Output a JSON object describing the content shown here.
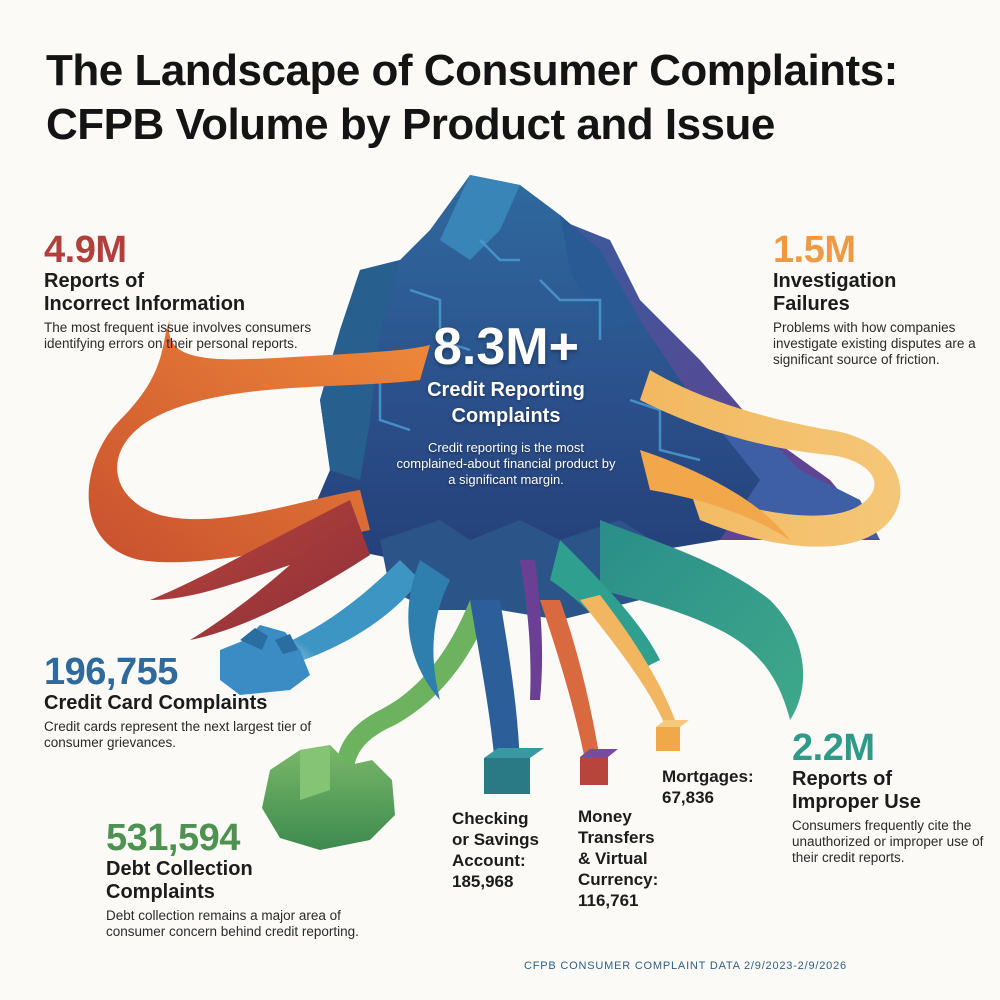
{
  "title": {
    "line1": "The Landscape of Consumer Complaints:",
    "line2": "CFPB Volume by Product and Issue"
  },
  "center": {
    "value": "8.3M+",
    "label_line1": "Credit Reporting",
    "label_line2": "Complaints",
    "description": "Credit reporting is the most complained-about financial product by a significant margin."
  },
  "stats": {
    "incorrect_info": {
      "value": "4.9M",
      "heading_line1": "Reports of",
      "heading_line2": "Incorrect Information",
      "description": "The most frequent issue involves consumers identifying errors on their personal reports.",
      "color": "#b0403c"
    },
    "investigation": {
      "value": "1.5M",
      "heading_line1": "Investigation",
      "heading_line2": "Failures",
      "description": "Problems with how companies investigate existing disputes are a significant source of friction.",
      "color": "#ee9a45"
    },
    "credit_card": {
      "value": "196,755",
      "heading_line1": "Credit Card Complaints",
      "description": "Credit cards represent the next largest tier of consumer grievances.",
      "color": "#2e6a9c"
    },
    "debt_collection": {
      "value": "531,594",
      "heading_line1": "Debt Collection",
      "heading_line2": "Complaints",
      "description": "Debt collection remains a major area of consumer concern behind credit reporting.",
      "color": "#4f9150"
    },
    "improper_use": {
      "value": "2.2M",
      "heading_line1": "Reports of",
      "heading_line2": "Improper Use",
      "description": "Consumers frequently cite the unauthorized or improper use of their credit reports.",
      "color": "#2f9a87"
    }
  },
  "products": {
    "checking": {
      "line1": "Checking",
      "line2": "or Savings",
      "line3": "Account:",
      "value": "185,968"
    },
    "money_transfers": {
      "line1": "Money",
      "line2": "Transfers",
      "line3": "& Virtual",
      "line4": "Currency:",
      "value": "116,761"
    },
    "mortgages": {
      "line1": "Mortgages:",
      "value": "67,836"
    }
  },
  "source": "CFPB CONSUMER COMPLAINT DATA 2/9/2023-2/9/2026"
}
